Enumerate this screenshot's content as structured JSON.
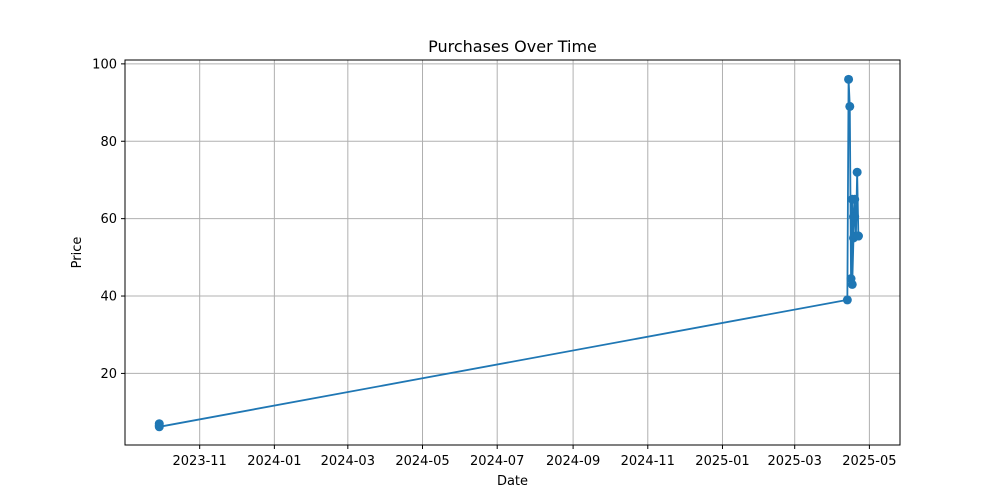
{
  "chart_data": {
    "type": "line",
    "title": "Purchases Over Time",
    "xlabel": "Date",
    "ylabel": "Price",
    "xlim": [
      "2023-09-01",
      "2025-05-26"
    ],
    "ylim": [
      1.5,
      101
    ],
    "x_ticks": [
      "2023-11",
      "2024-01",
      "2024-03",
      "2024-05",
      "2024-07",
      "2024-09",
      "2024-11",
      "2025-01",
      "2025-03",
      "2025-05"
    ],
    "y_ticks": [
      20,
      40,
      60,
      80,
      100
    ],
    "grid": true,
    "marker": "circle",
    "color": "#1f77b4",
    "series": [
      {
        "x": [
          "2023-09-29",
          "2023-09-29",
          "2023-09-29",
          "2025-04-13",
          "2025-04-14",
          "2025-04-15",
          "2025-04-16",
          "2025-04-17",
          "2025-04-17",
          "2025-04-18",
          "2025-04-18",
          "2025-04-19",
          "2025-04-19",
          "2025-04-20",
          "2025-04-21",
          "2025-04-22",
          "2025-04-22"
        ],
        "y": [
          6.5,
          7.0,
          6.2,
          39,
          96,
          89,
          44.5,
          65,
          43,
          55,
          60.5,
          65,
          60.5,
          55.5,
          72,
          55.5,
          55.5
        ]
      }
    ]
  }
}
